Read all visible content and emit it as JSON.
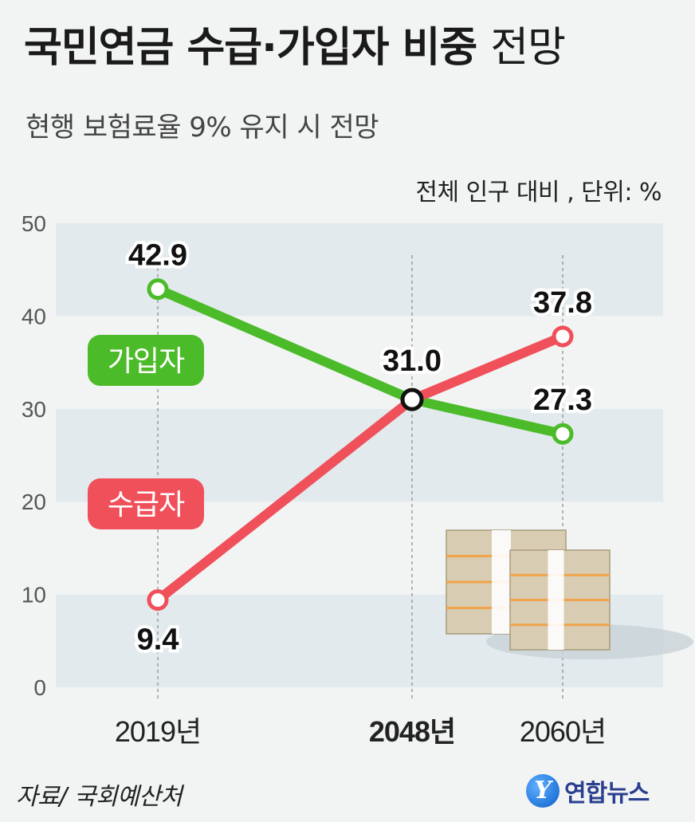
{
  "title": {
    "bold": "국민연금 수급·가입자 비중",
    "light": "전망"
  },
  "subtitle": "현행 보험료율 9% 유지 시 전망",
  "unit": "전체 인구 대비 , 단위: %",
  "source": "자료/ 국회예산처",
  "logo": {
    "mark": "Y",
    "text": "연합뉴스",
    "color": "#2a3f8f"
  },
  "chart_data": {
    "type": "line",
    "x": [
      "2019년",
      "2048년",
      "2060년"
    ],
    "x_numeric": [
      2019,
      2048,
      2060
    ],
    "highlight_x": "2048년",
    "ylim": [
      0,
      50
    ],
    "yticks": [
      0,
      10,
      20,
      30,
      40,
      50
    ],
    "grid": true,
    "series": [
      {
        "name": "가입자",
        "values": [
          42.9,
          31.0,
          27.3
        ],
        "color": "#4cbb2a",
        "labels": [
          "42.9",
          "31.0",
          "27.3"
        ]
      },
      {
        "name": "수급자",
        "values": [
          9.4,
          31.0,
          37.8
        ],
        "color": "#f0505a",
        "labels": [
          "9.4",
          "",
          "37.8"
        ]
      }
    ],
    "intersection": {
      "x": "2048년",
      "value": 31.0,
      "label": "31.0"
    },
    "legend": "inline"
  }
}
